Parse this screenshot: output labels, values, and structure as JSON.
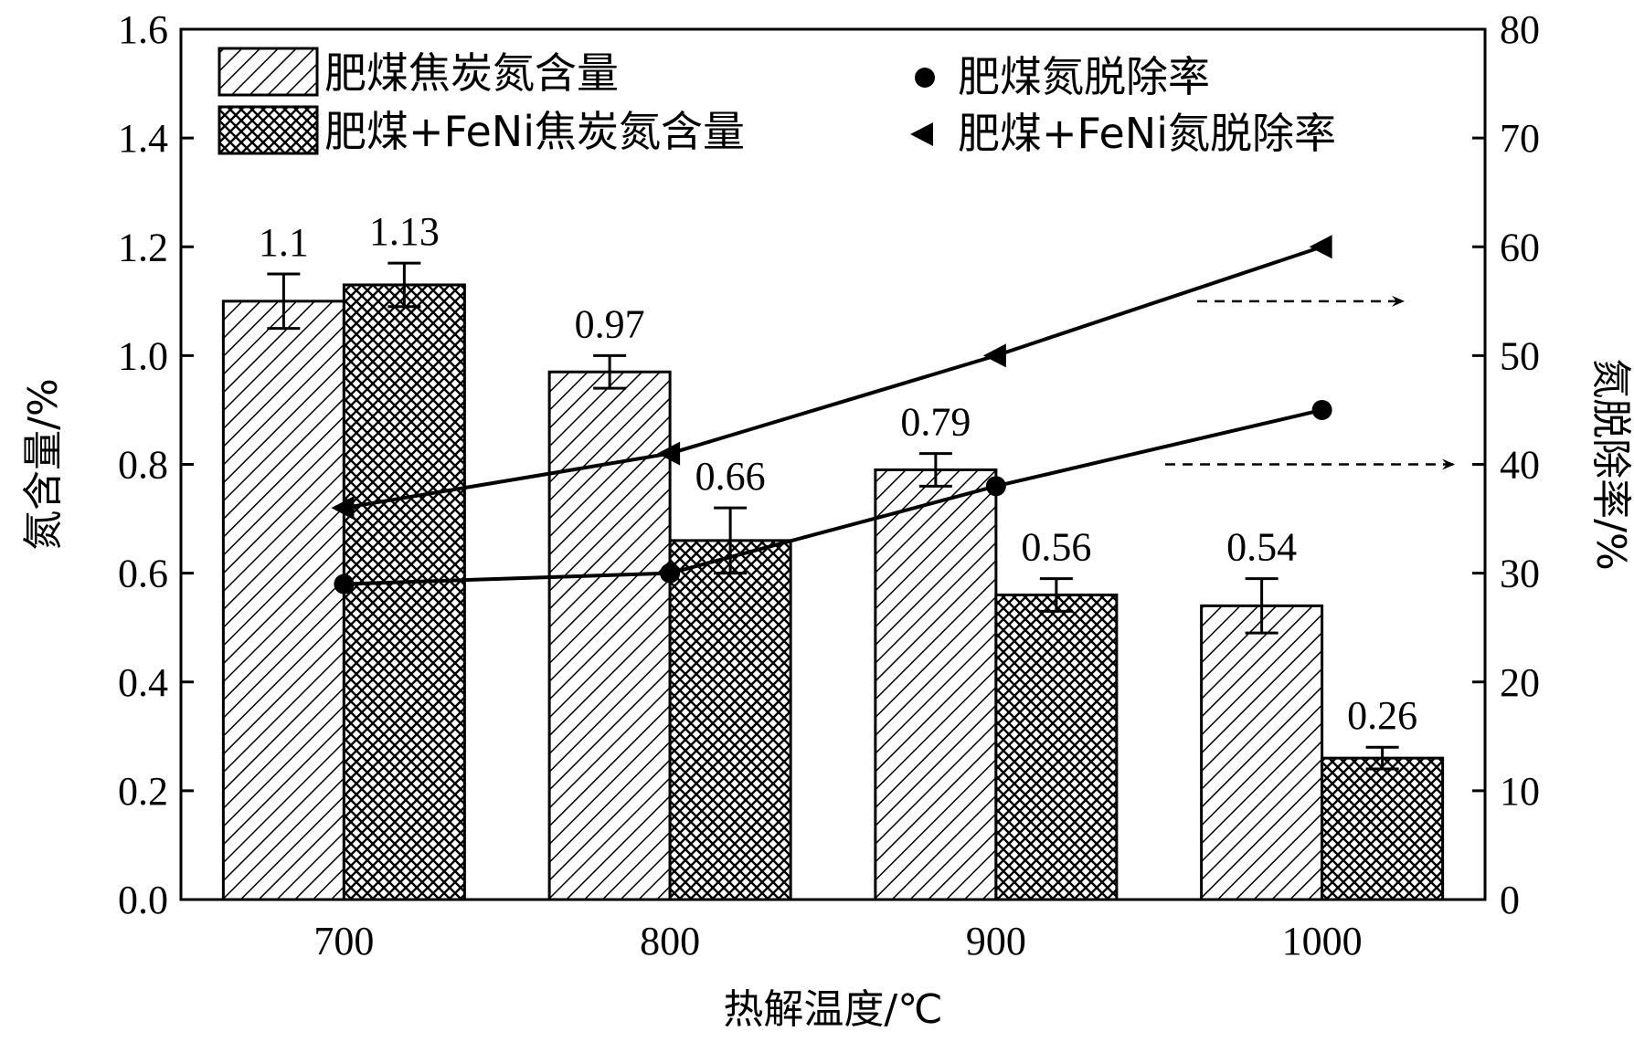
{
  "chart_data": {
    "type": "bar",
    "categories": [
      "700",
      "800",
      "900",
      "1000"
    ],
    "xlabel": "热解温度/℃",
    "ylabel_left": "氮含量/%",
    "ylabel_right": "氮脱除率/%",
    "ylim_left": [
      0,
      1.6
    ],
    "ylim_right": [
      0,
      80
    ],
    "yticks_left": [
      "0.0",
      "0.2",
      "0.4",
      "0.6",
      "0.8",
      "1.0",
      "1.2",
      "1.4",
      "1.6"
    ],
    "yticks_right": [
      "0",
      "10",
      "20",
      "30",
      "40",
      "50",
      "60",
      "70",
      "80"
    ],
    "bar_series": [
      {
        "name": "肥煤焦炭氮含量",
        "pattern": "diagonal-hatch",
        "values": [
          1.1,
          0.97,
          0.79,
          0.54
        ],
        "errors": [
          0.05,
          0.03,
          0.03,
          0.05
        ],
        "labels": [
          "1.1",
          "0.97",
          "0.79",
          "0.54"
        ]
      },
      {
        "name": "肥煤+FeNi焦炭氮含量",
        "pattern": "cross-hatch",
        "values": [
          1.13,
          0.66,
          0.56,
          0.26
        ],
        "errors": [
          0.04,
          0.06,
          0.03,
          0.02
        ],
        "labels": [
          "1.13",
          "0.66",
          "0.56",
          "0.26"
        ]
      }
    ],
    "line_series": [
      {
        "name": "肥煤氮脱除率",
        "marker": "circle",
        "axis": "right",
        "values": [
          29,
          30,
          38,
          45
        ]
      },
      {
        "name": "肥煤+FeNi氮脱除率",
        "marker": "triangle",
        "axis": "right",
        "values": [
          36,
          41,
          50,
          60
        ]
      }
    ],
    "axis_arrows": [
      {
        "axis": "right",
        "y_value": 55
      },
      {
        "axis": "right",
        "y_value": 40
      }
    ],
    "legend_position": "top"
  },
  "colors": {
    "ink": "#000000",
    "background": "#ffffff"
  }
}
